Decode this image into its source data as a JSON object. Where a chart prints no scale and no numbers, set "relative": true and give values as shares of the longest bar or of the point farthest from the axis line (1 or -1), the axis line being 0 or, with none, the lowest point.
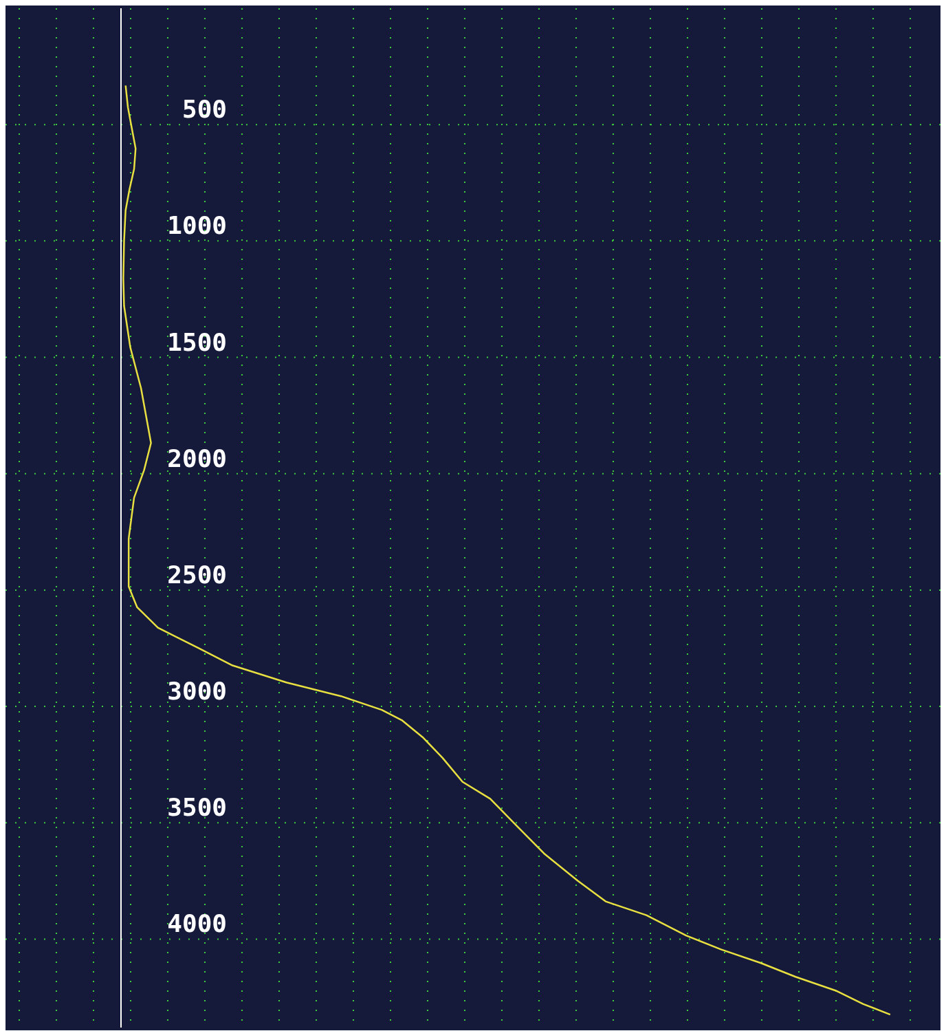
{
  "chart_data": {
    "type": "line",
    "orientation": "horizontal",
    "relative": true,
    "tick_labels": "y",
    "grid": true,
    "ylim": [
      4380,
      0
    ],
    "yticks": [
      500,
      1000,
      1500,
      2000,
      2500,
      3000,
      3500,
      4000
    ],
    "x": [
      332,
      426,
      515,
      603,
      691,
      779,
      868,
      1000,
      1162,
      1279,
      1456,
      1632,
      1868,
      1985,
      2103,
      2279,
      2485,
      2574,
      2662,
      2750,
      2824,
      2897,
      2956,
      3015,
      3059,
      3132,
      3221,
      3324,
      3397,
      3515,
      3632,
      3750,
      3838,
      3897,
      3985,
      4044,
      4103,
      4162,
      4221,
      4279,
      4324
    ],
    "series": [
      {
        "color": "#e8e040",
        "values": [
          0.006,
          0.009,
          0.014,
          0.019,
          0.017,
          0.011,
          0.006,
          0.004,
          0.003,
          0.004,
          0.012,
          0.026,
          0.039,
          0.03,
          0.017,
          0.01,
          0.01,
          0.021,
          0.048,
          0.101,
          0.145,
          0.215,
          0.286,
          0.339,
          0.365,
          0.392,
          0.418,
          0.444,
          0.48,
          0.515,
          0.55,
          0.594,
          0.63,
          0.683,
          0.735,
          0.78,
          0.832,
          0.877,
          0.929,
          0.965,
          1
        ]
      }
    ]
  }
}
